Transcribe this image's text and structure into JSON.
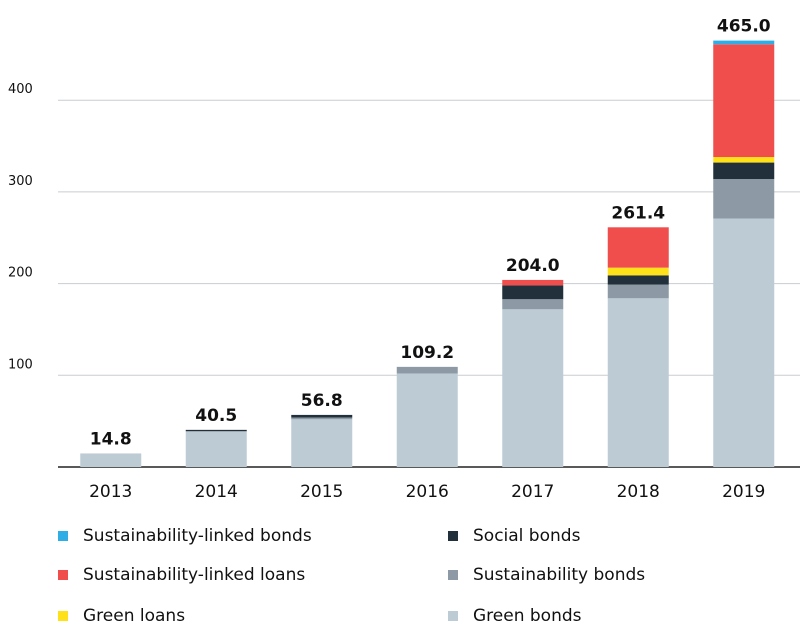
{
  "chart_data": {
    "type": "bar",
    "stacked": true,
    "categories": [
      "2013",
      "2014",
      "2015",
      "2016",
      "2017",
      "2018",
      "2019"
    ],
    "y_ticks": [
      100,
      200,
      300,
      400
    ],
    "ylim": [
      0,
      470
    ],
    "grid": true,
    "legend_position": "bottom",
    "series": [
      {
        "name": "Green bonds",
        "color": "#bdcbd5",
        "values": [
          14.8,
          38.5,
          52.0,
          102.0,
          172.0,
          184.0,
          271.0
        ]
      },
      {
        "name": "Sustainability bonds",
        "color": "#8d99a5",
        "values": [
          0,
          0.6,
          2.0,
          7.2,
          11.0,
          15.0,
          43.0
        ]
      },
      {
        "name": "Social bonds",
        "color": "#22303c",
        "values": [
          0,
          1.4,
          2.8,
          0,
          15.0,
          10.0,
          18.0
        ]
      },
      {
        "name": "Green loans",
        "color": "#ffe11a",
        "values": [
          0,
          0,
          0,
          0,
          0,
          8.4,
          6.0
        ]
      },
      {
        "name": "Sustainability-linked loans",
        "color": "#f04e4c",
        "values": [
          0,
          0,
          0,
          0,
          6.0,
          44.0,
          123.0
        ]
      },
      {
        "name": "Sustainability-linked bonds",
        "color": "#2eaee4",
        "values": [
          0,
          0,
          0,
          0,
          0,
          0,
          4.0
        ]
      }
    ],
    "totals": [
      "14.8",
      "40.5",
      "56.8",
      "109.2",
      "204.0",
      "261.4",
      "465.0"
    ],
    "highlight_total_color": "#f04e4c"
  },
  "legend": [
    {
      "label": "Sustainability-linked bonds",
      "color": "#2eaee4"
    },
    {
      "label": "Social bonds",
      "color": "#22303c"
    },
    {
      "label": "Sustainability-linked loans",
      "color": "#f04e4c"
    },
    {
      "label": "Sustainability bonds",
      "color": "#8d99a5"
    },
    {
      "label": "Green loans",
      "color": "#ffe11a"
    },
    {
      "label": "Green bonds",
      "color": "#bdcbd5"
    }
  ]
}
